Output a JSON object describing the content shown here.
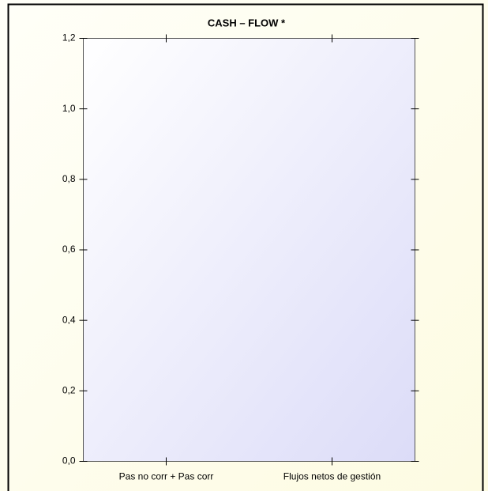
{
  "chart_data": {
    "type": "bar",
    "title": "CASH – FLOW  *",
    "categories": [
      "Pas no corr + Pas corr",
      "Flujos netos de gestión"
    ],
    "ylim": [
      0,
      1.2
    ],
    "yticks": [
      {
        "value": 0,
        "label": "0,0"
      },
      {
        "value": 0.2,
        "label": "0,2"
      },
      {
        "value": 0.4,
        "label": "0,4"
      },
      {
        "value": 0.6,
        "label": "0,6"
      },
      {
        "value": 0.8,
        "label": "0,8"
      },
      {
        "value": 1.0,
        "label": "1,0"
      },
      {
        "value": 1.2,
        "label": "1,2"
      }
    ],
    "grid": false
  }
}
